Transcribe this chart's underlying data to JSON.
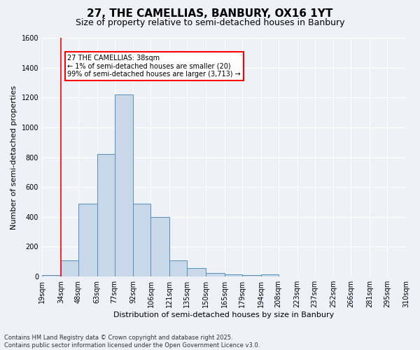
{
  "title": "27, THE CAMELLIAS, BANBURY, OX16 1YT",
  "subtitle": "Size of property relative to semi-detached houses in Banbury",
  "xlabel": "Distribution of semi-detached houses by size in Banbury",
  "ylabel": "Number of semi-detached properties",
  "bin_edges": [
    19,
    34,
    48,
    63,
    77,
    92,
    106,
    121,
    135,
    150,
    165,
    179,
    194,
    208,
    223,
    237,
    252,
    266,
    281,
    295,
    310
  ],
  "bin_labels": [
    "19sqm",
    "34sqm",
    "48sqm",
    "63sqm",
    "77sqm",
    "92sqm",
    "106sqm",
    "121sqm",
    "135sqm",
    "150sqm",
    "165sqm",
    "179sqm",
    "194sqm",
    "208sqm",
    "223sqm",
    "237sqm",
    "252sqm",
    "266sqm",
    "281sqm",
    "295sqm",
    "310sqm"
  ],
  "counts": [
    10,
    110,
    490,
    820,
    1220,
    490,
    400,
    110,
    55,
    25,
    15,
    10,
    15,
    0,
    0,
    0,
    0,
    0,
    0,
    0
  ],
  "bar_color": "#c8d8e8",
  "bar_edge_color": "#5090c0",
  "red_line_x": 34,
  "annotation_title": "27 THE CAMELLIAS: 38sqm",
  "annotation_line1": "← 1% of semi-detached houses are smaller (20)",
  "annotation_line2": "99% of semi-detached houses are larger (3,713) →",
  "ylim": [
    0,
    1600
  ],
  "yticks": [
    0,
    200,
    400,
    600,
    800,
    1000,
    1200,
    1400,
    1600
  ],
  "footnote1": "Contains HM Land Registry data © Crown copyright and database right 2025.",
  "footnote2": "Contains public sector information licensed under the Open Government Licence v3.0.",
  "bg_color": "#eef2f7",
  "grid_color": "#ffffff",
  "title_fontsize": 11,
  "subtitle_fontsize": 9,
  "axis_fontsize": 8,
  "tick_fontsize": 7,
  "footnote_fontsize": 6
}
